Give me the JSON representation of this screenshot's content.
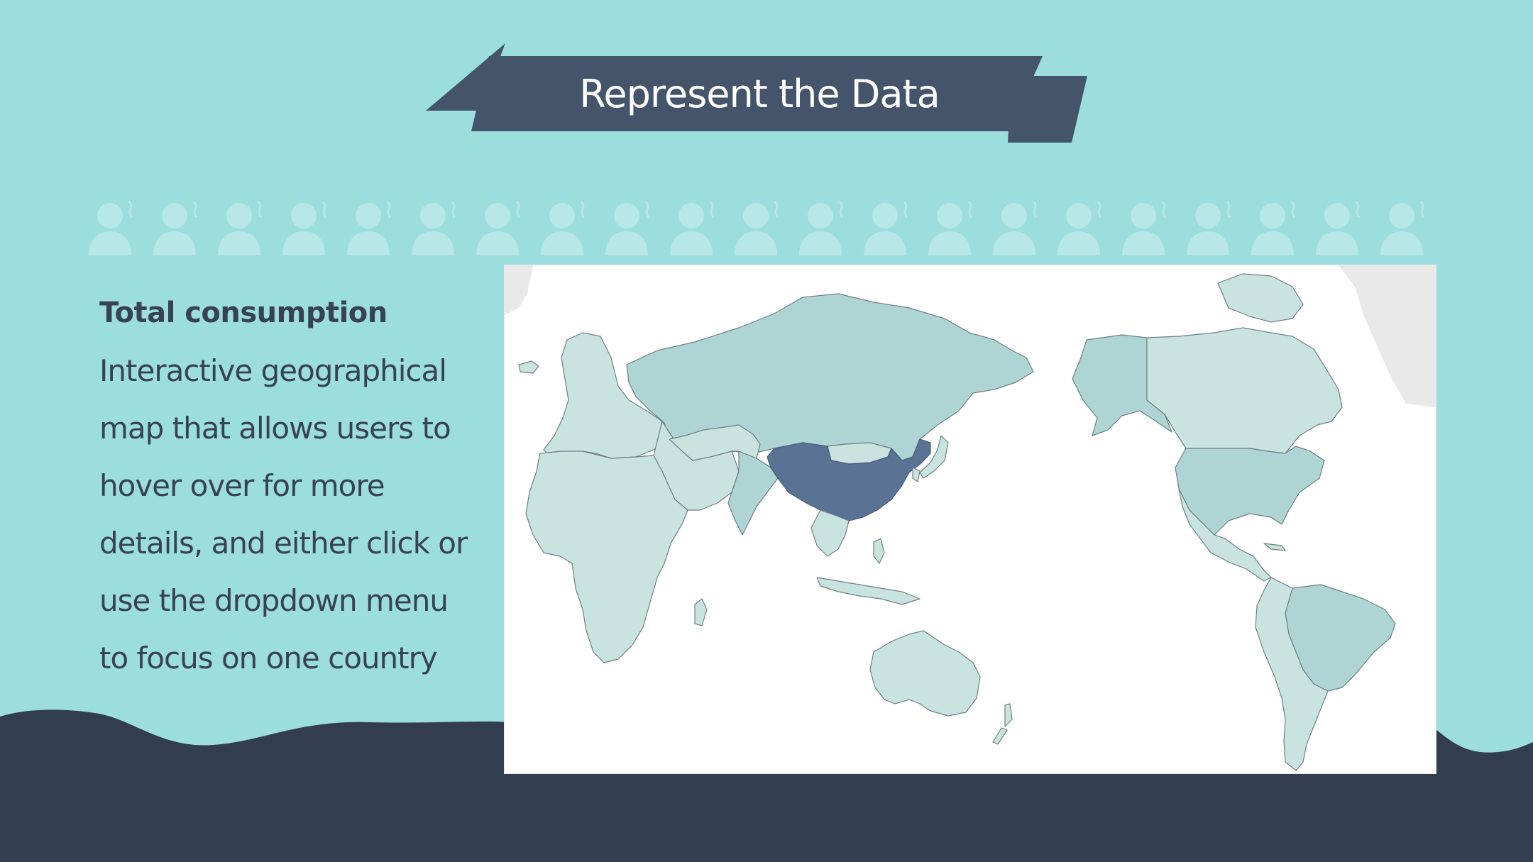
{
  "slide": {
    "title": "Represent the Data",
    "heading": "Total consumption",
    "description": "Interactive geographical map that allows users to hover over for more details, and either click or use the dropdown menu to focus on one country"
  },
  "colors": {
    "background": "#9cdedd",
    "ribbon": "#44546a",
    "wave": "#333d50",
    "text": "#374254",
    "map_highlight": "#5a7293",
    "map_mid": "#aed4d4",
    "map_low": "#c9e4df",
    "map_none": "#e9e9e9"
  },
  "icons": {
    "background_pattern": "person-smoking-icon",
    "map": "world-choropleth-map"
  },
  "map": {
    "highlighted_country": "China"
  }
}
